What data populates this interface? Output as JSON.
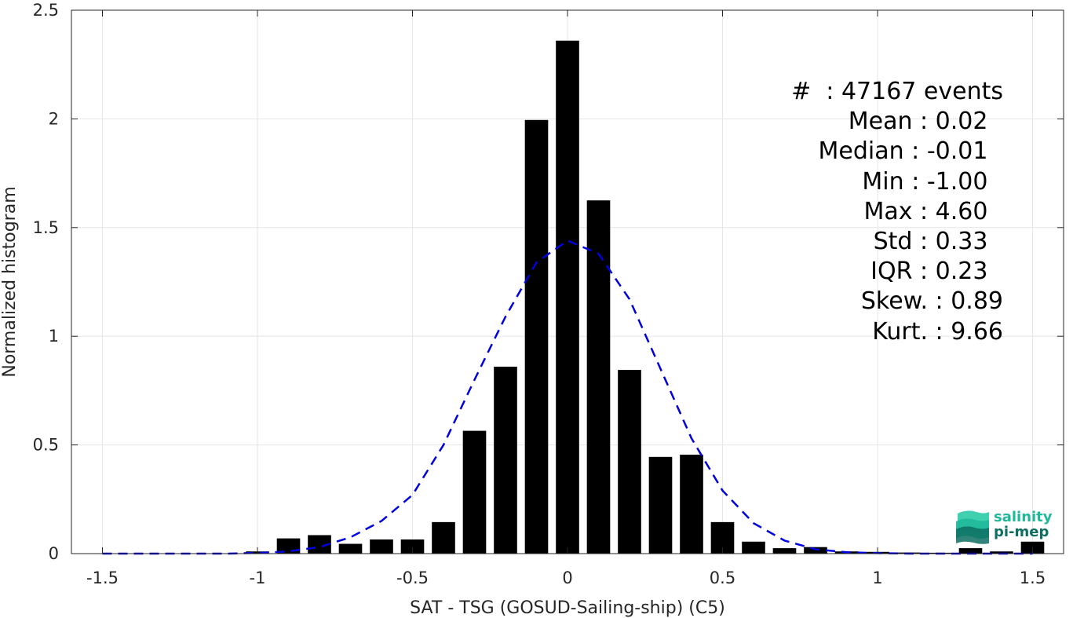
{
  "chart_data": {
    "type": "bar",
    "xlabel": "SAT - TSG (GOSUD-Sailing-ship) (C5)",
    "ylabel": "Normalized histogram",
    "xlim": [
      -1.6,
      1.6
    ],
    "ylim": [
      0,
      2.5
    ],
    "xticks": [
      -1.5,
      -1,
      -0.5,
      0,
      0.5,
      1,
      1.5
    ],
    "xtick_labels": [
      "-1.5",
      "-1",
      "-0.5",
      "0",
      "0.5",
      "1",
      "1.5"
    ],
    "yticks": [
      0,
      0.5,
      1,
      1.5,
      2,
      2.5
    ],
    "ytick_labels": [
      "0",
      "0.5",
      "1",
      "1.5",
      "2",
      "2.5"
    ],
    "grid": true,
    "bars": {
      "x": [
        -1.0,
        -0.9,
        -0.8,
        -0.7,
        -0.6,
        -0.5,
        -0.4,
        -0.3,
        -0.2,
        -0.1,
        0.0,
        0.1,
        0.2,
        0.3,
        0.4,
        0.5,
        0.6,
        0.7,
        0.8,
        0.9,
        1.0,
        1.1,
        1.2,
        1.3,
        1.4,
        1.5
      ],
      "values": [
        0.01,
        0.07,
        0.085,
        0.045,
        0.065,
        0.065,
        0.145,
        0.565,
        0.86,
        1.995,
        2.36,
        1.625,
        0.845,
        0.445,
        0.455,
        0.145,
        0.055,
        0.025,
        0.03,
        0.01,
        0.008,
        0.005,
        0.004,
        0.025,
        0.01,
        0.055
      ],
      "color": "#000000"
    },
    "fit": {
      "type": "gaussian",
      "style": "dashed",
      "color": "#0000dd",
      "x": [
        -1.5,
        -1.4,
        -1.3,
        -1.2,
        -1.1,
        -1.0,
        -0.9,
        -0.8,
        -0.7,
        -0.6,
        -0.5,
        -0.4,
        -0.3,
        -0.2,
        -0.1,
        0.0,
        0.1,
        0.2,
        0.3,
        0.4,
        0.5,
        0.6,
        0.7,
        0.8,
        0.9,
        1.0,
        1.1,
        1.2,
        1.3,
        1.4,
        1.5
      ],
      "y": [
        0.0,
        0.0,
        0.0,
        0.0,
        0.0,
        0.003,
        0.01,
        0.03,
        0.075,
        0.15,
        0.27,
        0.5,
        0.8,
        1.09,
        1.34,
        1.44,
        1.38,
        1.17,
        0.85,
        0.53,
        0.29,
        0.14,
        0.06,
        0.02,
        0.006,
        0.002,
        0.0,
        0.0,
        0.0,
        0.0,
        0.0
      ]
    }
  },
  "stats": [
    "#  : 47167 events",
    "Mean : 0.02 ",
    "Median : -0.01 ",
    "Min : -1.00 ",
    "Max : 4.60 ",
    "Std : 0.33 ",
    "IQR : 0.23 ",
    "Skew. : 0.89",
    "Kurt. : 9.66"
  ],
  "logo": {
    "line1": "salinity",
    "line2": "pi-mep",
    "name": "salinity-pi-mep-logo",
    "colors": [
      "#1fb89a",
      "#0d6e61",
      "#3fd0b0"
    ]
  }
}
